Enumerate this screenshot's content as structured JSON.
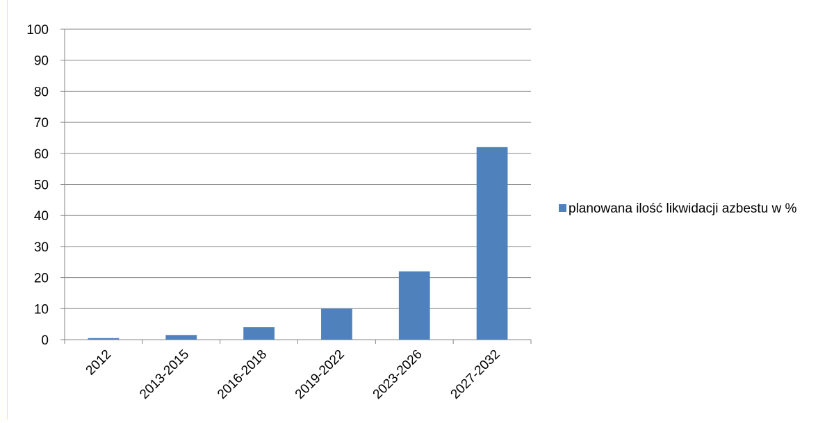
{
  "chart_data": {
    "type": "bar",
    "categories": [
      "2012",
      "2013-2015",
      "2016-2018",
      "2019-2022",
      "2023-2026",
      "2027-2032"
    ],
    "series": [
      {
        "name": "planowana ilość likwidacji azbestu w %",
        "values": [
          0.5,
          1.5,
          4,
          10,
          22,
          62
        ]
      }
    ],
    "ylim": [
      0,
      100
    ],
    "yticks": [
      0,
      10,
      20,
      30,
      40,
      50,
      60,
      70,
      80,
      90,
      100
    ],
    "grid": true,
    "legend_position": "right"
  },
  "colors": {
    "series": "#4f81bd",
    "grid": "#868686"
  }
}
